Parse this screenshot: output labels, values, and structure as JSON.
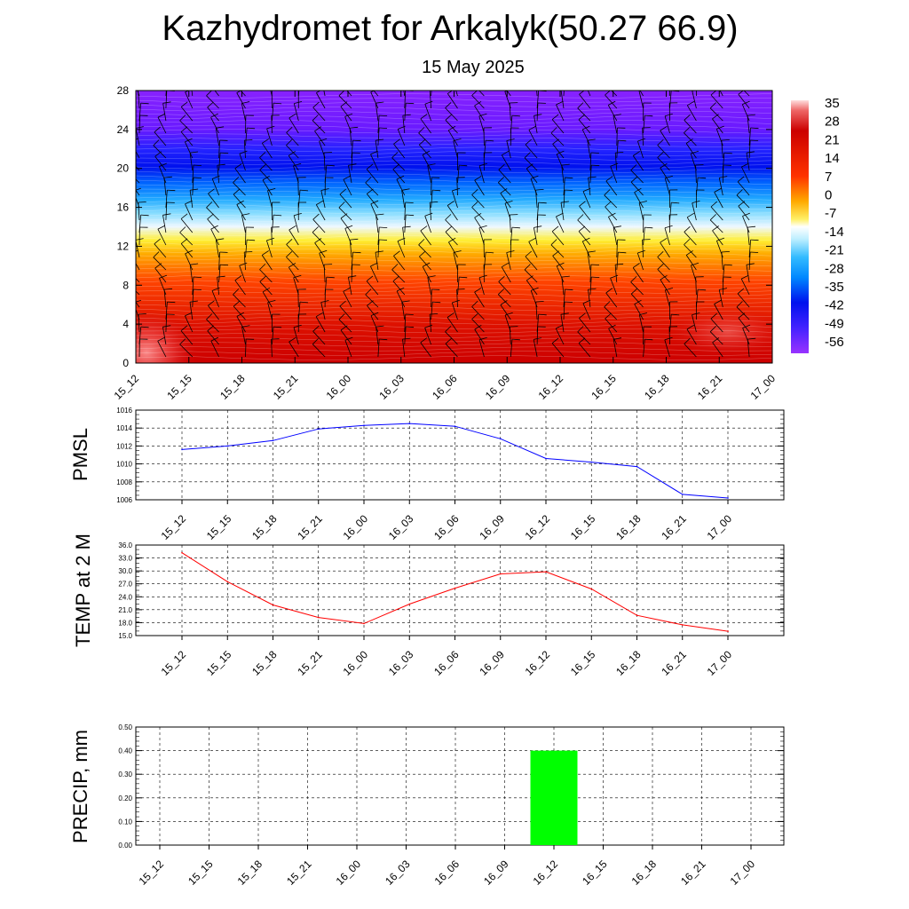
{
  "title": "Kazhydromet for Arkalyk(50.27 66.9)",
  "subtitle": "15 May 2025",
  "time_labels": [
    "15_12",
    "15_15",
    "15_18",
    "15_21",
    "16_00",
    "16_03",
    "16_06",
    "16_09",
    "16_12",
    "16_15",
    "16_18",
    "16_21",
    "17_00"
  ],
  "chart_data": [
    {
      "type": "heatmap",
      "ylabel": "",
      "ylim": [
        0,
        28
      ],
      "yticks": [
        "0",
        "4",
        "8",
        "12",
        "16",
        "20",
        "24",
        "28"
      ],
      "colorbar": {
        "labels": [
          "35",
          "28",
          "21",
          "14",
          "7",
          "0",
          "-7",
          "-14",
          "-21",
          "-28",
          "-35",
          "-42",
          "-49",
          "-56"
        ]
      },
      "x": [
        "15_12",
        "15_15",
        "15_18",
        "15_21",
        "16_00",
        "16_03",
        "16_06",
        "16_09",
        "16_12",
        "16_15",
        "16_18",
        "16_21",
        "17_00"
      ],
      "note_wind_barbs": true
    },
    {
      "type": "line",
      "ylabel": "PMSL",
      "ylim": [
        1006,
        1016
      ],
      "yticks": [
        "1006",
        "1008",
        "1010",
        "1012",
        "1014",
        "1016"
      ],
      "color": "#0000ff",
      "x": [
        "15_12",
        "15_15",
        "15_18",
        "15_21",
        "16_00",
        "16_03",
        "16_06",
        "16_09",
        "16_12",
        "16_15",
        "16_18",
        "16_21",
        "17_00"
      ],
      "values": [
        1011.6,
        1012.0,
        1012.6,
        1013.9,
        1014.3,
        1014.5,
        1014.2,
        1012.8,
        1010.6,
        1010.2,
        1009.7,
        1006.6,
        1006.2
      ]
    },
    {
      "type": "line",
      "ylabel": "TEMP at 2 M",
      "ylim": [
        15,
        36
      ],
      "yticks": [
        "15.0",
        "18.0",
        "21.0",
        "24.0",
        "27.0",
        "30.0",
        "33.0",
        "36.0"
      ],
      "color": "#ff0000",
      "x": [
        "15_12",
        "15_15",
        "15_18",
        "15_21",
        "16_00",
        "16_03",
        "16_06",
        "16_09",
        "16_12",
        "16_15",
        "16_18",
        "16_21",
        "17_00"
      ],
      "values": [
        34.2,
        27.5,
        22.1,
        19.2,
        17.8,
        22.3,
        26.0,
        29.3,
        29.8,
        25.8,
        19.7,
        17.5,
        16.0
      ]
    },
    {
      "type": "bar",
      "ylabel": "PRECIP, mm",
      "ylim": [
        0,
        0.5
      ],
      "yticks": [
        "0.00",
        "0.10",
        "0.20",
        "0.30",
        "0.40",
        "0.50"
      ],
      "color": "#00ff00",
      "categories": [
        "15_12",
        "15_15",
        "15_18",
        "15_21",
        "16_00",
        "16_03",
        "16_06",
        "16_09",
        "16_12",
        "16_15",
        "16_18",
        "16_21",
        "17_00"
      ],
      "values": [
        0,
        0,
        0,
        0,
        0,
        0,
        0,
        0,
        0.4,
        0,
        0,
        0,
        0
      ]
    }
  ]
}
